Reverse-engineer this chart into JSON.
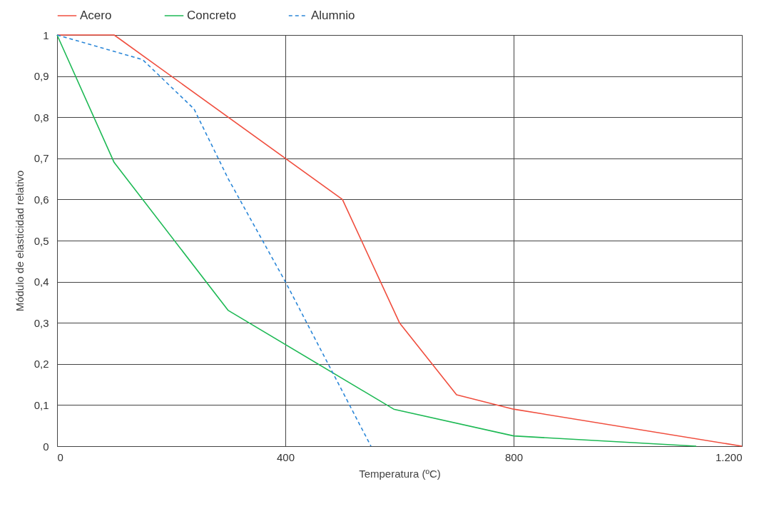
{
  "chart_data": {
    "type": "line",
    "xlabel": "Temperatura (ºC)",
    "ylabel": "Módulo de elasticidad relativo",
    "legend": "top",
    "grid": true,
    "xlim": [
      0,
      1200
    ],
    "xticks": [
      0,
      400,
      800,
      {
        "value": 1200,
        "label": "1.200"
      }
    ],
    "ylim": [
      0,
      1
    ],
    "yticks": [
      0,
      {
        "value": 0.1,
        "label": "0,1"
      },
      {
        "value": 0.2,
        "label": "0,2"
      },
      {
        "value": 0.3,
        "label": "0,3"
      },
      {
        "value": 0.4,
        "label": "0,4"
      },
      {
        "value": 0.5,
        "label": "0,5"
      },
      {
        "value": 0.6,
        "label": "0,6"
      },
      {
        "value": 0.7,
        "label": "0,7"
      },
      {
        "value": 0.8,
        "label": "0,8"
      },
      {
        "value": 0.9,
        "label": "0,9"
      },
      1
    ],
    "series": [
      {
        "name": "Acero",
        "color": "#f04e3e",
        "line_style": "solid",
        "x": [
          0,
          100,
          500,
          600,
          700,
          800,
          1200
        ],
        "values": [
          1,
          1,
          0.6,
          0.3,
          0.125,
          0.09,
          0
        ]
      },
      {
        "name": "Concreto",
        "color": "#1db954",
        "line_style": "solid",
        "x": [
          0,
          100,
          300,
          590,
          800,
          1120
        ],
        "values": [
          1,
          0.69,
          0.33,
          0.09,
          0.025,
          0
        ]
      },
      {
        "name": "Alumnio",
        "color": "#2b87d8",
        "line_style": "dashed",
        "x": [
          0,
          100,
          150,
          240,
          300,
          400,
          550
        ],
        "values": [
          1,
          0.96,
          0.94,
          0.82,
          0.65,
          0.4,
          0
        ]
      }
    ]
  }
}
